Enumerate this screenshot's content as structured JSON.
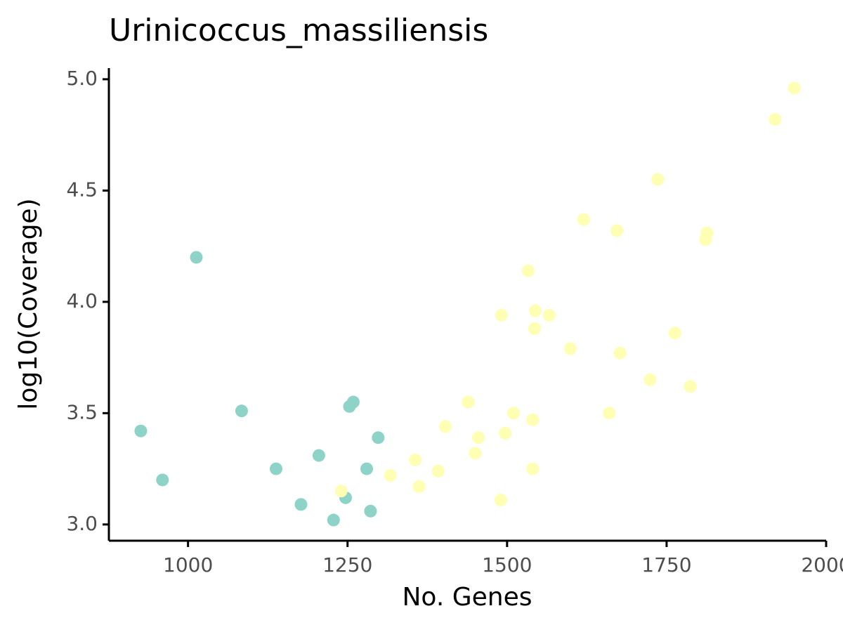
{
  "chart_data": {
    "type": "scatter",
    "title": "Urinicoccus_massiliensis",
    "x_label": "No. Genes",
    "y_label": "log10(Coverage)",
    "xlim": [
      876,
      2000
    ],
    "xticks": [
      1000,
      1250,
      1500,
      1750,
      2000
    ],
    "ylim": [
      2.927,
      5.05
    ],
    "yticks": [
      {
        "value": 3,
        "label": "3.0"
      },
      3.5,
      {
        "value": 4,
        "label": "4.0"
      },
      4.5,
      {
        "value": 5,
        "label": "5.0"
      }
    ],
    "series": [
      {
        "color": "#8dd3c7",
        "x": [
          926,
          960,
          1013,
          1084,
          1138,
          1177,
          1205,
          1228,
          1247,
          1253,
          1259,
          1280,
          1286,
          1298
        ],
        "values": [
          3.42,
          3.2,
          4.2,
          3.51,
          3.25,
          3.09,
          3.31,
          3.02,
          3.12,
          3.53,
          3.55,
          3.25,
          3.06,
          3.39
        ]
      },
      {
        "color": "#ffffb3",
        "x": [
          1240,
          1317,
          1356,
          1362,
          1392,
          1403,
          1439,
          1450,
          1455,
          1490,
          1491,
          1497,
          1510,
          1533,
          1540,
          1540,
          1543,
          1544,
          1566,
          1599,
          1620,
          1660,
          1672,
          1677,
          1724,
          1736,
          1763,
          1787,
          1811,
          1813,
          1920,
          1950
        ],
        "values": [
          3.15,
          3.22,
          3.29,
          3.17,
          3.24,
          3.44,
          3.55,
          3.32,
          3.39,
          3.11,
          3.94,
          3.41,
          3.5,
          4.14,
          3.47,
          3.25,
          3.88,
          3.96,
          3.94,
          3.79,
          4.37,
          3.5,
          4.32,
          3.77,
          3.65,
          4.55,
          3.86,
          3.62,
          4.28,
          4.31,
          4.82,
          4.96
        ]
      }
    ]
  }
}
